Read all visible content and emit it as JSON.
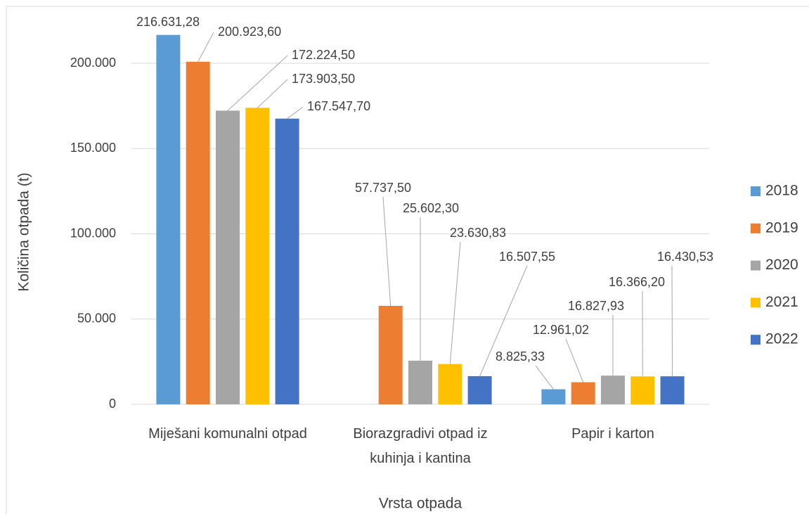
{
  "chart_data": {
    "type": "bar",
    "categories": [
      "Miješani komunalni otpad",
      "Biorazgradivi otpad iz kuhinja i kantina",
      "Papir i karton"
    ],
    "series": [
      {
        "name": "2018",
        "color": "#5b9bd5",
        "values": [
          216631.28,
          null,
          8825.33
        ],
        "value_labels": [
          "216.631,28",
          null,
          "8.825,33"
        ]
      },
      {
        "name": "2019",
        "color": "#ed7d31",
        "values": [
          200923.6,
          57737.5,
          12961.02
        ],
        "value_labels": [
          "200.923,60",
          "57.737,50",
          "12.961,02"
        ]
      },
      {
        "name": "2020",
        "color": "#a5a5a5",
        "values": [
          172224.5,
          25602.3,
          16827.93
        ],
        "value_labels": [
          "172.224,50",
          "25.602,30",
          "16.827,93"
        ]
      },
      {
        "name": "2021",
        "color": "#ffc000",
        "values": [
          173903.5,
          23630.83,
          16366.2
        ],
        "value_labels": [
          "173.903,50",
          "23.630,83",
          "16.366,20"
        ]
      },
      {
        "name": "2022",
        "color": "#4472c4",
        "values": [
          167547.7,
          16507.55,
          16430.53
        ],
        "value_labels": [
          "167.547,70",
          "16.507,55",
          "16.430,53"
        ]
      }
    ],
    "x_label": "Vrsta otpada",
    "y_label": "Količina otpada (t)",
    "ylim": [
      0,
      220000
    ],
    "yticks": [
      0,
      {
        "value": 50000,
        "label": "50.000"
      },
      {
        "value": 100000,
        "label": "100.000"
      },
      {
        "value": 150000,
        "label": "150.000"
      },
      {
        "value": 200000,
        "label": "200.000"
      }
    ],
    "grid": true,
    "legend": "right"
  }
}
